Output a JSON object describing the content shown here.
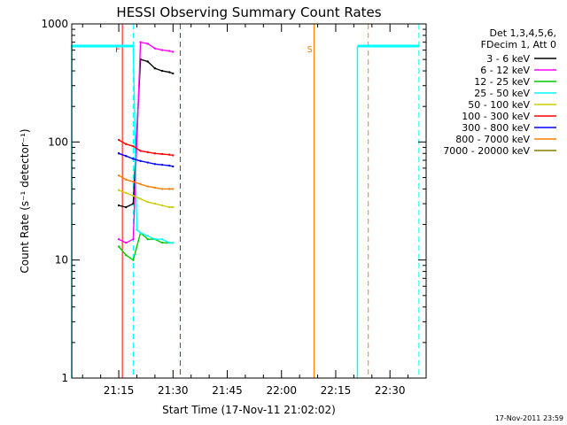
{
  "chart_data": {
    "type": "line",
    "title": "HESSI Observing Summary Count Rates",
    "xlabel": "Start Time (17-Nov-11 21:02:02)",
    "ylabel": "Count Rate (s⁻¹ detector⁻¹)",
    "yscale": "log",
    "ylim": [
      1,
      1000
    ],
    "xlim": [
      "21:02",
      "22:40"
    ],
    "x_ticks": [
      "21:15",
      "21:30",
      "21:45",
      "22:00",
      "22:15",
      "22:30"
    ],
    "y_ticks": [
      "1",
      "10",
      "100",
      "1000"
    ],
    "legend_title": [
      "Det 1,3,4,5,6,",
      "FDecim 1, Att 0"
    ],
    "legend_position": "right",
    "timestamp": "17-Nov-2011 23:59",
    "series": [
      {
        "name": "3 - 6 keV",
        "color": "#000000",
        "x": [
          "21:15",
          "21:17",
          "21:19",
          "21:21",
          "21:23",
          "21:25",
          "21:27",
          "21:29",
          "21:30"
        ],
        "y": [
          29,
          28,
          30,
          500,
          480,
          420,
          400,
          390,
          380
        ]
      },
      {
        "name": "6 - 12 keV",
        "color": "#ff00ff",
        "x": [
          "21:15",
          "21:17",
          "21:19",
          "21:21",
          "21:23",
          "21:25",
          "21:27",
          "21:29",
          "21:30"
        ],
        "y": [
          15,
          14,
          15,
          700,
          680,
          620,
          600,
          590,
          580
        ]
      },
      {
        "name": "12 - 25 keV",
        "color": "#00cc00",
        "x": [
          "21:15",
          "21:17",
          "21:19",
          "21:21",
          "21:23",
          "21:25",
          "21:27",
          "21:29",
          "21:30"
        ],
        "y": [
          13,
          11,
          10,
          17,
          15,
          15,
          14,
          14,
          14
        ]
      },
      {
        "name": "25 - 50 keV",
        "color": "#00ffff",
        "x": [
          "21:02",
          "21:19",
          "21:20",
          "21:21",
          "21:23",
          "21:25",
          "21:27",
          "21:29",
          "21:30"
        ],
        "y": [
          650,
          650,
          18,
          17,
          16,
          15,
          15,
          14,
          14
        ]
      },
      {
        "name": "50 - 100 keV",
        "color": "#cccc00",
        "x": [
          "21:15",
          "21:17",
          "21:19",
          "21:21",
          "21:23",
          "21:25",
          "21:27",
          "21:29",
          "21:30"
        ],
        "y": [
          39,
          37,
          35,
          33,
          31,
          30,
          29,
          28,
          28
        ]
      },
      {
        "name": "100 - 300 keV",
        "color": "#ff0000",
        "x": [
          "21:15",
          "21:17",
          "21:19",
          "21:21",
          "21:23",
          "21:25",
          "21:27",
          "21:29",
          "21:30"
        ],
        "y": [
          104,
          96,
          92,
          84,
          82,
          80,
          79,
          78,
          77
        ]
      },
      {
        "name": "300 - 800 keV",
        "color": "#0000ff",
        "x": [
          "21:15",
          "21:17",
          "21:19",
          "21:21",
          "21:23",
          "21:25",
          "21:27",
          "21:29",
          "21:30"
        ],
        "y": [
          80,
          76,
          72,
          69,
          67,
          65,
          64,
          63,
          62
        ]
      },
      {
        "name": "800 - 7000 keV",
        "color": "#ff7f00",
        "x": [
          "21:15",
          "21:17",
          "21:19",
          "21:21",
          "21:23",
          "21:25",
          "21:27",
          "21:29",
          "21:30"
        ],
        "y": [
          52,
          48,
          46,
          44,
          42,
          41,
          40,
          40,
          40
        ]
      },
      {
        "name": "7000 - 20000 keV",
        "color": "#808000",
        "x": [],
        "y": []
      }
    ],
    "flags": [
      {
        "label": "F",
        "color": "#ff0000",
        "start": "21:16",
        "end": "21:32"
      },
      {
        "label": "S",
        "color": "#ff7f00",
        "start": "22:09",
        "end": "22:24"
      }
    ],
    "orbit_segments": [
      {
        "start": "21:02",
        "end": "21:19",
        "level": 650
      },
      {
        "start": "22:21",
        "end": "22:38",
        "level": 650
      }
    ]
  }
}
